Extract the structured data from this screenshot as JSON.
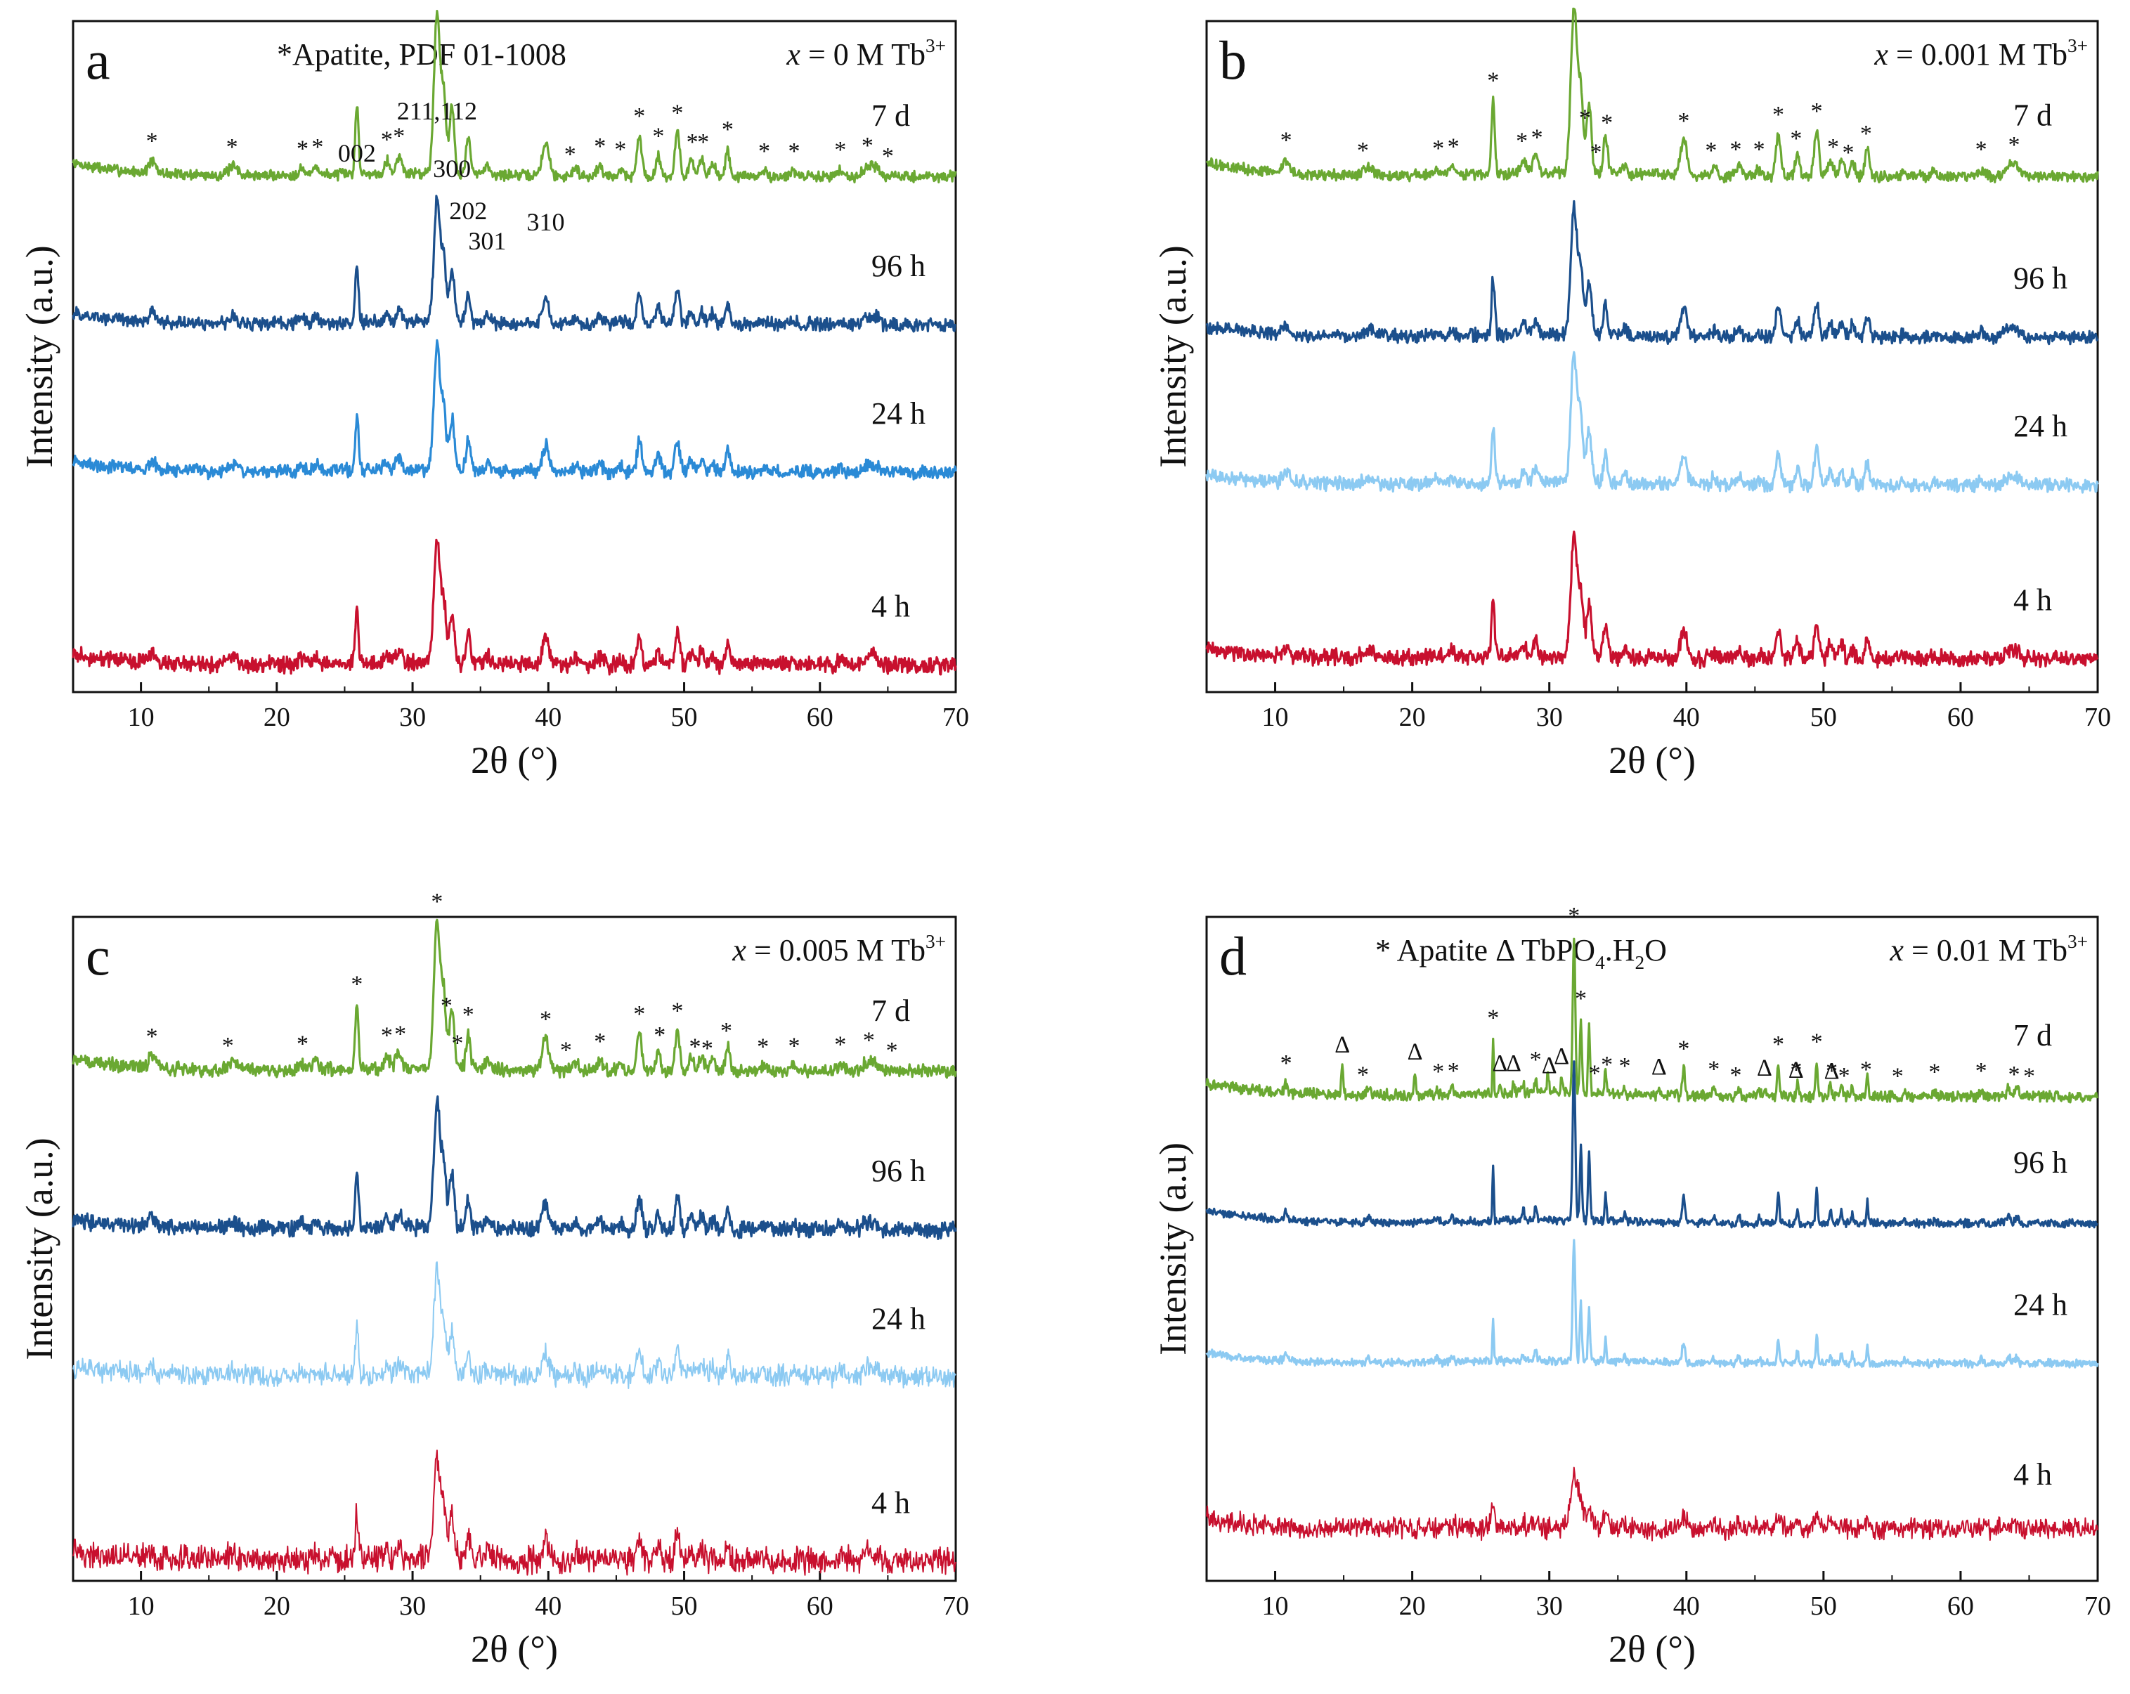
{
  "figure": {
    "x_axis_label": "2θ (°)"
  },
  "chart_data": [
    {
      "type": "line",
      "panel": "a",
      "header_left": "*Apatite, PDF 01-1008",
      "header_right": "x = 0 M Tb3+",
      "xlabel": "2θ (°)",
      "ylabel": "Intensity (a.u.)",
      "xlim": [
        5,
        70
      ],
      "xticks": [
        10,
        20,
        30,
        40,
        50,
        60,
        70
      ],
      "series": [
        {
          "name": "7 d",
          "color": "#6aa832",
          "offset": 0.78,
          "amp": 0.26,
          "sharp": 1.0,
          "noise": 0.004
        },
        {
          "name": "96 h",
          "color": "#1b4f8c",
          "offset": 0.55,
          "amp": 0.2,
          "sharp": 1.0,
          "noise": 0.005
        },
        {
          "name": "24 h",
          "color": "#2a8ad6",
          "offset": 0.32,
          "amp": 0.2,
          "sharp": 1.0,
          "noise": 0.005
        },
        {
          "name": "4 h",
          "color": "#c8102e",
          "offset": 0.02,
          "amp": 0.2,
          "sharp": 1.0,
          "noise": 0.006
        }
      ],
      "apatite_markers": [
        10.8,
        16.7,
        21.9,
        23.0,
        28.1,
        29.0,
        41.6,
        43.8,
        45.3,
        46.7,
        48.1,
        49.5,
        50.6,
        51.4,
        53.2,
        55.9,
        58.1,
        61.5,
        63.5,
        65.0
      ],
      "hkl_labels": [
        {
          "text": "002",
          "x": 25.9
        },
        {
          "text": "211,112",
          "x": 31.8
        },
        {
          "text": "300",
          "x": 32.9
        },
        {
          "text": "202",
          "x": 34.1
        },
        {
          "text": "301",
          "x": 35.5
        },
        {
          "text": "310",
          "x": 39.8
        }
      ]
    },
    {
      "type": "line",
      "panel": "b",
      "header_left": "",
      "header_right": "x = 0.001 M Tb3+",
      "xlabel": "2θ (°)",
      "ylabel": "Intensity (a.u.)",
      "xlim": [
        5,
        70
      ],
      "xticks": [
        10,
        20,
        30,
        40,
        50,
        60,
        70
      ],
      "series": [
        {
          "name": "7 d",
          "color": "#6aa832",
          "offset": 0.78,
          "amp": 0.27,
          "sharp": 1.0,
          "noise": 0.004
        },
        {
          "name": "96 h",
          "color": "#1b4f8c",
          "offset": 0.53,
          "amp": 0.21,
          "sharp": 1.0,
          "noise": 0.005
        },
        {
          "name": "24 h",
          "color": "#8ccaf2",
          "offset": 0.3,
          "amp": 0.21,
          "sharp": 1.0,
          "noise": 0.005
        },
        {
          "name": "4 h",
          "color": "#c8102e",
          "offset": 0.03,
          "amp": 0.2,
          "sharp": 1.0,
          "noise": 0.006
        }
      ],
      "apatite_markers": [
        10.8,
        16.4,
        21.9,
        23.0,
        25.9,
        28.0,
        29.1,
        31.8,
        32.6,
        33.4,
        34.2,
        39.8,
        41.8,
        43.6,
        45.3,
        46.7,
        48.0,
        49.5,
        50.7,
        51.8,
        53.1,
        61.5,
        63.9
      ],
      "hkl_labels": []
    },
    {
      "type": "line",
      "panel": "c",
      "header_left": "",
      "header_right": "x = 0.005 M Tb3+",
      "xlabel": "2θ (°)",
      "ylabel": "Intensity (a.u.)",
      "xlim": [
        5,
        70
      ],
      "xticks": [
        10,
        20,
        30,
        40,
        50,
        60,
        70
      ],
      "series": [
        {
          "name": "7 d",
          "color": "#6aa832",
          "offset": 0.78,
          "amp": 0.24,
          "sharp": 1.0,
          "noise": 0.005
        },
        {
          "name": "96 h",
          "color": "#1b4f8c",
          "offset": 0.53,
          "amp": 0.21,
          "sharp": 1.0,
          "noise": 0.006
        },
        {
          "name": "24 h",
          "color": "#8ccaf2",
          "offset": 0.3,
          "amp": 0.17,
          "sharp": 1.0,
          "noise": 0.008
        },
        {
          "name": "4 h",
          "color": "#c8102e",
          "offset": 0.01,
          "amp": 0.17,
          "sharp": 1.0,
          "noise": 0.01
        }
      ],
      "apatite_markers": [
        10.8,
        16.4,
        21.9,
        25.9,
        28.1,
        29.1,
        31.8,
        32.5,
        33.3,
        34.1,
        39.8,
        41.3,
        43.8,
        46.7,
        48.2,
        49.5,
        50.8,
        51.7,
        53.1,
        55.8,
        58.1,
        61.5,
        63.6,
        65.3
      ],
      "hkl_labels": []
    },
    {
      "type": "line",
      "panel": "d",
      "header_left": "* Apatite   Δ TbPO4.H2O",
      "header_right": "x = 0.01 M Tb3+",
      "xlabel": "2θ (°)",
      "ylabel": "Intensity (a.u)",
      "xlim": [
        5,
        70
      ],
      "xticks": [
        10,
        20,
        30,
        40,
        50,
        60,
        70
      ],
      "series": [
        {
          "name": "7 d",
          "color": "#6aa832",
          "offset": 0.74,
          "amp": 0.26,
          "sharp": 2.4,
          "noise": 0.004
        },
        {
          "name": "96 h",
          "color": "#1b4f8c",
          "offset": 0.54,
          "amp": 0.26,
          "sharp": 2.4,
          "noise": 0.003
        },
        {
          "name": "24 h",
          "color": "#8ccaf2",
          "offset": 0.32,
          "amp": 0.2,
          "sharp": 2.4,
          "noise": 0.003
        },
        {
          "name": "4 h",
          "color": "#c8102e",
          "offset": 0.06,
          "amp": 0.09,
          "sharp": 0.9,
          "noise": 0.008
        }
      ],
      "apatite_markers": [
        10.8,
        16.4,
        21.9,
        23.0,
        25.9,
        29.0,
        31.8,
        32.3,
        33.3,
        34.2,
        35.5,
        39.8,
        42.0,
        43.6,
        46.7,
        48.0,
        49.5,
        50.6,
        51.5,
        53.1,
        55.4,
        58.1,
        61.5,
        63.9,
        65.0
      ],
      "tbpo4_markers": [
        14.9,
        20.2,
        26.4,
        27.4,
        30.0,
        30.9,
        38.0,
        45.7,
        48.0,
        50.6
      ],
      "hkl_labels": []
    }
  ]
}
